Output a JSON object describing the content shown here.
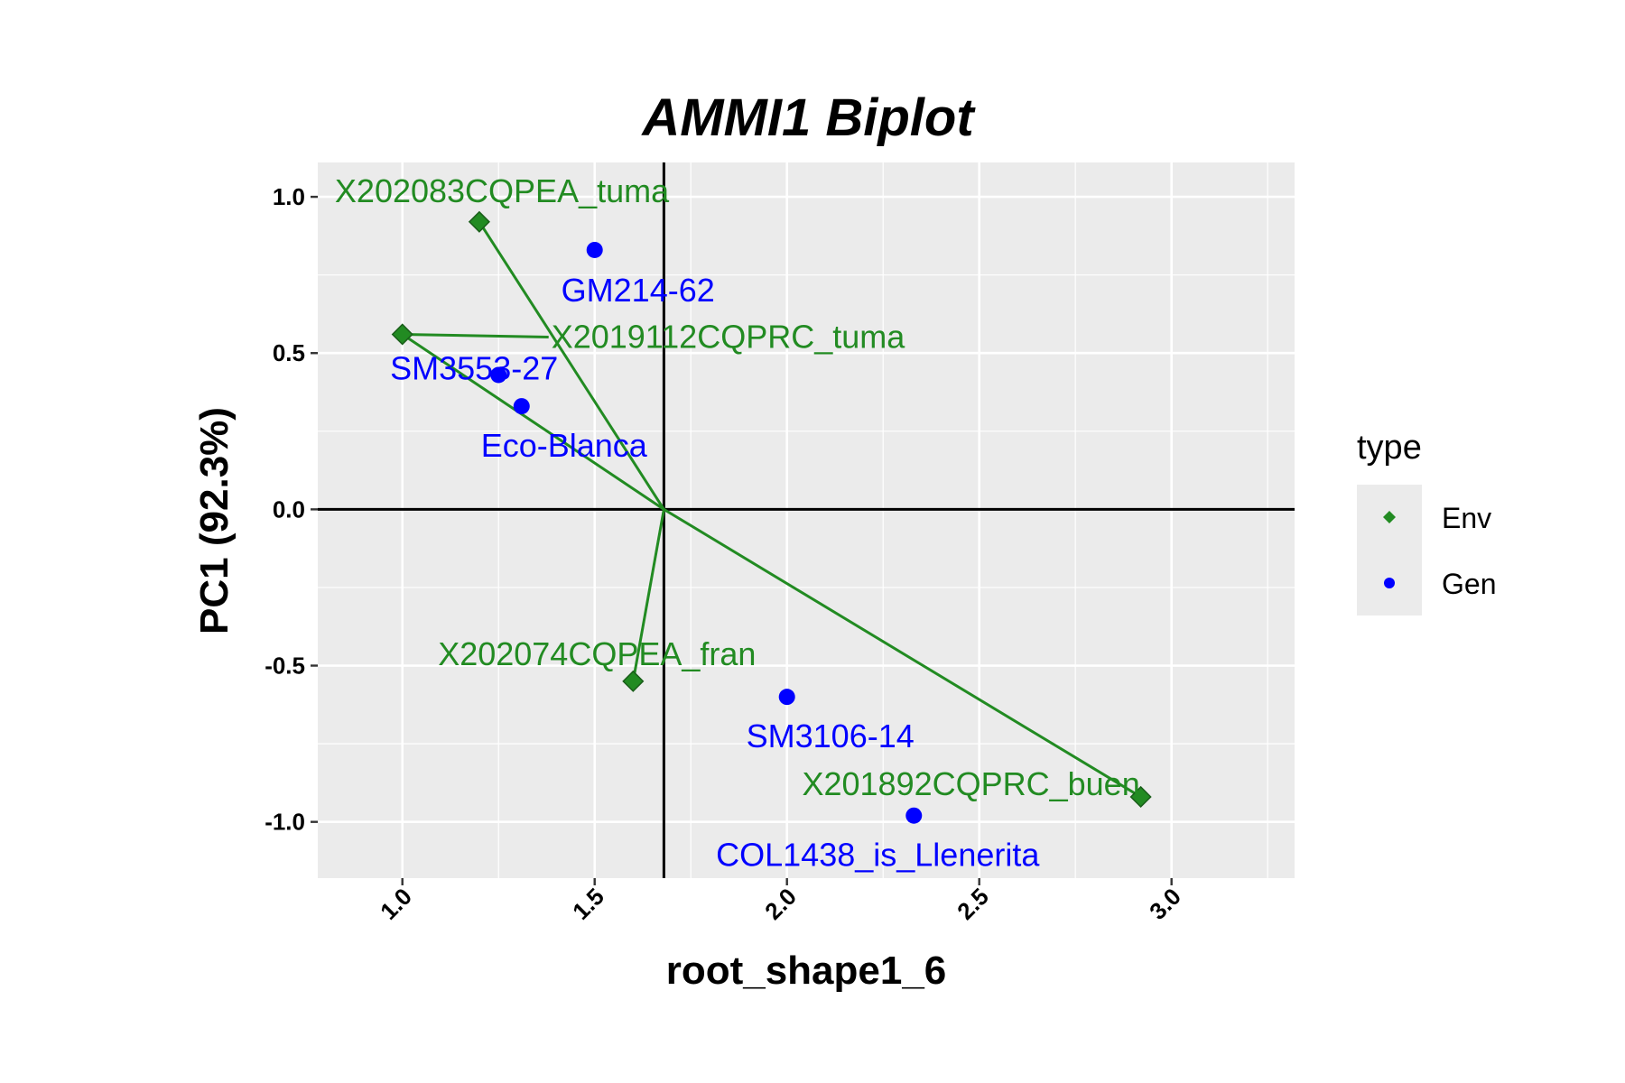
{
  "chart_data": {
    "type": "scatter",
    "title": "AMMI1 Biplot",
    "xlabel": "root_shape1_6",
    "ylabel": "PC1 (92.3%)",
    "xlim": [
      0.78,
      3.32
    ],
    "ylim": [
      -1.18,
      1.11
    ],
    "x_ticks": [
      1.0,
      1.5,
      2.0,
      2.5,
      3.0
    ],
    "x_tick_labels": [
      "1.0",
      "1.5",
      "2.0",
      "2.5",
      "3.0"
    ],
    "y_ticks": [
      1.0,
      0.5,
      0.0,
      -0.5,
      -1.0
    ],
    "y_tick_labels": [
      "1.0",
      "0.5",
      "0.0",
      "-0.5",
      "-1.0"
    ],
    "grid": true,
    "origin": [
      1.68,
      0.0
    ],
    "legend": {
      "title": "type",
      "position": "right",
      "entries": [
        {
          "label": "Env",
          "shape": "diamond",
          "color": "#228B22"
        },
        {
          "label": "Gen",
          "shape": "circle",
          "color": "#0000FF"
        }
      ]
    },
    "series": [
      {
        "name": "Env",
        "color": "#228B22",
        "points": [
          {
            "label": "X202083CQPEA_tuma",
            "x": 1.2,
            "y": 0.92
          },
          {
            "label": "X2019112CQPRC_tuma",
            "x": 1.0,
            "y": 0.56
          },
          {
            "label": "X202074CQPEA_fran",
            "x": 1.6,
            "y": -0.55
          },
          {
            "label": "X201892CQPRC_buen",
            "x": 2.92,
            "y": -0.92
          }
        ]
      },
      {
        "name": "Gen",
        "color": "#0000FF",
        "points": [
          {
            "label": "GM214-62",
            "x": 1.5,
            "y": 0.83
          },
          {
            "label": "SM3553-27",
            "x": 1.25,
            "y": 0.43
          },
          {
            "label": "Eco-Blanca",
            "x": 1.31,
            "y": 0.33
          },
          {
            "label": "SM3106-14",
            "x": 2.0,
            "y": -0.6
          },
          {
            "label": "COL1438_is_Llenerita",
            "x": 2.33,
            "y": -0.98
          }
        ]
      }
    ]
  }
}
